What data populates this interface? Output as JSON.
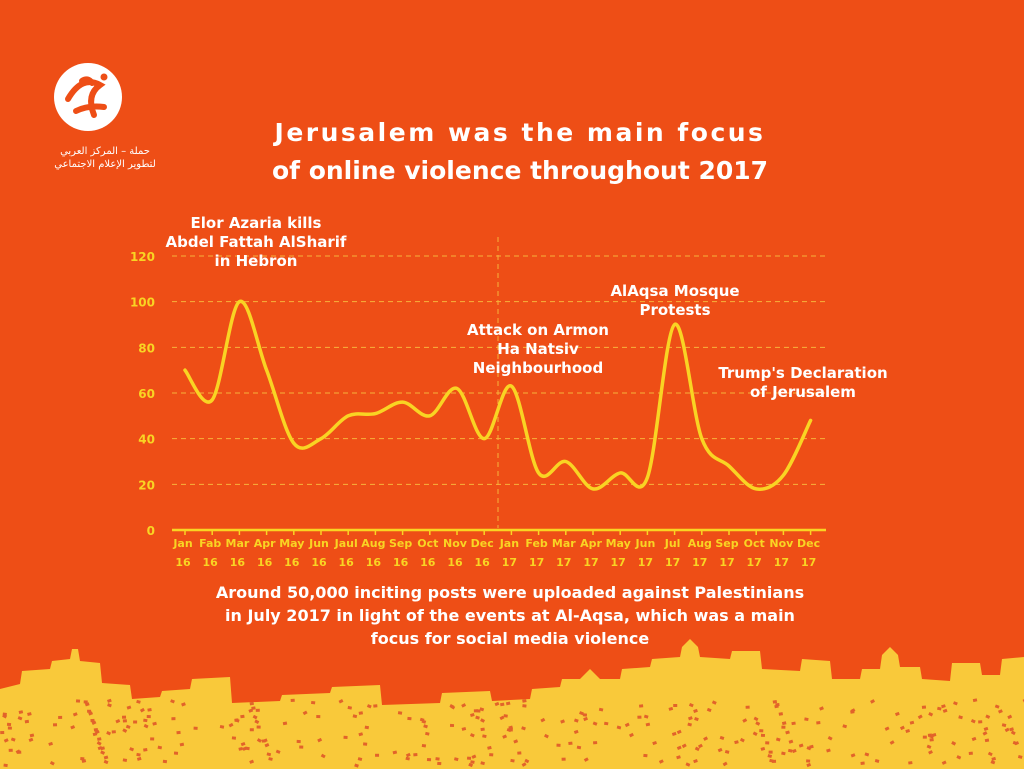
{
  "logo": {
    "name": "7amleh",
    "line1": "حملة – المركز العربي",
    "line2": "لتطوير الإعلام الاجتماعي"
  },
  "title": {
    "line1": "Jerusalem was the main focus",
    "line2": "of online violence throughout 2017"
  },
  "caption": {
    "line1": "Around 50,000 inciting posts were uploaded against Palestinians",
    "line2": "in July 2017 in light of the events at Al-Aqsa, which was a main",
    "line3": "focus for social media violence"
  },
  "colors": {
    "background": "#EE4E16",
    "line": "#F9D423",
    "axis": "#F9D423",
    "grid": "#F7B23B",
    "skyline": "#F9C93A",
    "skyline_dot": "#E2632A"
  },
  "chart_data": {
    "type": "line",
    "title": "",
    "xlabel": "",
    "ylabel": "",
    "ylim": [
      0,
      120
    ],
    "yticks": [
      0,
      20,
      40,
      60,
      80,
      100,
      120
    ],
    "grid": "horizontal dashed",
    "categories": [
      [
        "Jan",
        "16"
      ],
      [
        "Fab",
        "16"
      ],
      [
        "Mar",
        "16"
      ],
      [
        "Apr",
        "16"
      ],
      [
        "May",
        "16"
      ],
      [
        "Jun",
        "16"
      ],
      [
        "Jaul",
        "16"
      ],
      [
        "Aug",
        "16"
      ],
      [
        "Sep",
        "16"
      ],
      [
        "Oct",
        "16"
      ],
      [
        "Nov",
        "16"
      ],
      [
        "Dec",
        "16"
      ],
      [
        "Jan",
        "17"
      ],
      [
        "Feb",
        "17"
      ],
      [
        "Mar",
        "17"
      ],
      [
        "Apr",
        "17"
      ],
      [
        "May",
        "17"
      ],
      [
        "Jun",
        "17"
      ],
      [
        "Jul",
        "17"
      ],
      [
        "Aug",
        "17"
      ],
      [
        "Sep",
        "17"
      ],
      [
        "Oct",
        "17"
      ],
      [
        "Nov",
        "17"
      ],
      [
        "Dec",
        "17"
      ]
    ],
    "values": [
      70,
      57,
      100,
      70,
      38,
      40,
      50,
      51,
      56,
      50,
      62,
      40,
      63,
      25,
      30,
      18,
      25,
      23,
      90,
      40,
      28,
      18,
      24,
      48
    ],
    "annotations": [
      {
        "lines": [
          "Elor Azaria kills",
          "Abdel Fattah AlSharif",
          "in Hebron"
        ]
      },
      {
        "lines": [
          "Attack on Armon",
          "Ha Natsiv",
          "Neighbourhood"
        ]
      },
      {
        "lines": [
          "AlAqsa Mosque",
          "Protests"
        ]
      },
      {
        "lines": [
          "Trump's Declaration",
          "of Jerusalem"
        ]
      }
    ]
  }
}
